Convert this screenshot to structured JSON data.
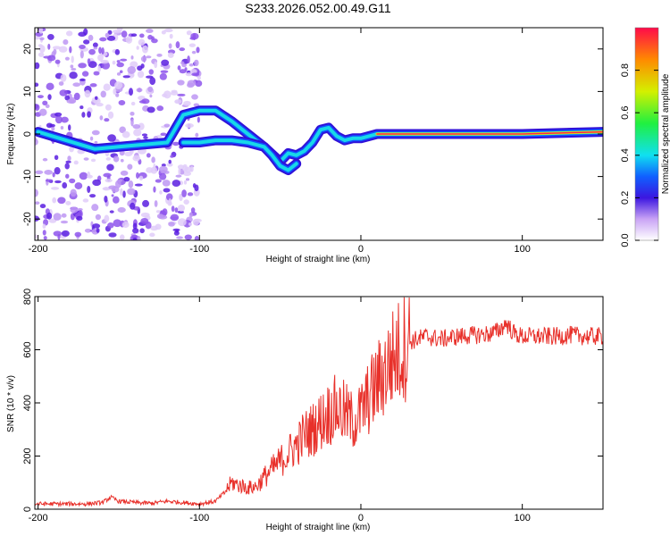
{
  "figure": {
    "title": "S233.2026.052.00.49.G11"
  },
  "chart_data": [
    {
      "type": "heatmap",
      "name": "spectrogram",
      "xlabel": "Height of straight line (km)",
      "ylabel": "Frequency (Hz)",
      "xlim": [
        -202,
        150
      ],
      "ylim": [
        -25,
        25
      ],
      "xticks": [
        -200,
        -100,
        0,
        100
      ],
      "yticks": [
        -20,
        -10,
        0,
        10,
        20
      ],
      "colorbar": {
        "label": "Normalized spectral amplitude",
        "range": [
          0,
          1
        ],
        "ticks": [
          0.0,
          0.2,
          0.4,
          0.6,
          0.8
        ]
      },
      "dominant_frequency_track": {
        "x": [
          -200,
          -165,
          -150,
          -135,
          -120,
          -110,
          -100,
          -90,
          -80,
          -70,
          -60,
          -50,
          -45,
          -40,
          -35,
          -30,
          -25,
          -20,
          -15,
          -10,
          -5,
          0,
          10,
          50,
          100,
          150
        ],
        "y": [
          0.5,
          -3.5,
          -3,
          -2.5,
          -2,
          4.5,
          5.5,
          5.5,
          3,
          0,
          -3,
          -6.5,
          -4.5,
          -5,
          -4,
          -2,
          1,
          1.5,
          -0.5,
          -1.5,
          -1,
          -1,
          0,
          0,
          0,
          0.5
        ]
      },
      "secondary_track": {
        "x": [
          -110,
          -100,
          -90,
          -80,
          -70,
          -60,
          -55,
          -50,
          -45,
          -40
        ],
        "y": [
          -2,
          -2,
          -1.5,
          -1.5,
          -2,
          -3,
          -5,
          -7.5,
          -8.5,
          -7
        ]
      },
      "noise_region_x": [
        -202,
        -100
      ]
    },
    {
      "type": "line",
      "name": "snr",
      "xlabel": "Height of straight line (km)",
      "ylabel": "SNR (10 * v/v)",
      "xlim": [
        -202,
        150
      ],
      "ylim": [
        0,
        800
      ],
      "xticks": [
        -200,
        -100,
        0,
        100
      ],
      "yticks": [
        0,
        200,
        400,
        600,
        800
      ],
      "color": "#e8302a",
      "series": [
        {
          "name": "SNR",
          "x": [
            -202,
            -190,
            -180,
            -170,
            -160,
            -155,
            -150,
            -140,
            -130,
            -120,
            -110,
            -100,
            -95,
            -90,
            -85,
            -80,
            -75,
            -70,
            -65,
            -60,
            -55,
            -50,
            -45,
            -40,
            -35,
            -30,
            -25,
            -20,
            -15,
            -10,
            -5,
            0,
            5,
            10,
            15,
            20,
            25,
            30,
            35,
            40,
            50,
            60,
            70,
            80,
            85,
            90,
            95,
            100,
            110,
            120,
            130,
            140,
            150
          ],
          "values": [
            20,
            20,
            20,
            20,
            25,
            45,
            30,
            25,
            22,
            30,
            25,
            20,
            25,
            30,
            60,
            100,
            90,
            80,
            85,
            120,
            150,
            180,
            210,
            240,
            280,
            300,
            330,
            360,
            380,
            360,
            330,
            360,
            420,
            470,
            520,
            570,
            600,
            630,
            640,
            650,
            640,
            650,
            655,
            660,
            670,
            700,
            660,
            650,
            650,
            650,
            655,
            650,
            650
          ]
        }
      ]
    }
  ]
}
